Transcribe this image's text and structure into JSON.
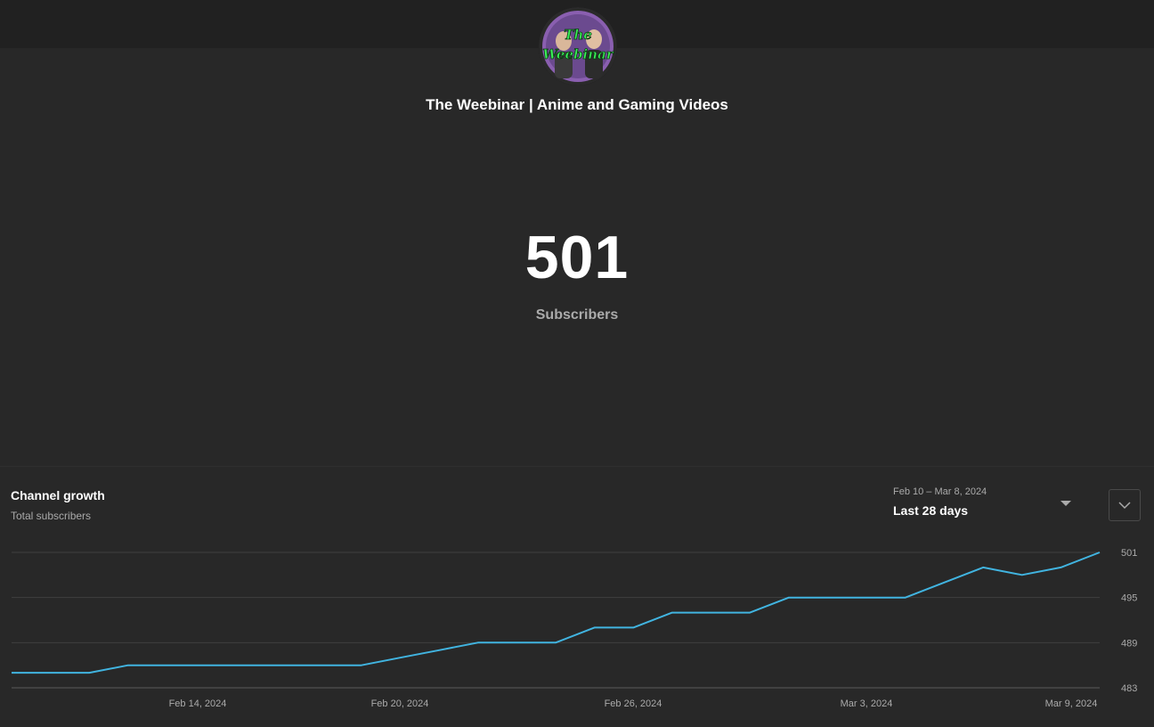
{
  "channel": {
    "name": "The Weebinar | Anime and Gaming Videos",
    "avatar_logo_text": "The Weebinar"
  },
  "stats": {
    "subscriber_count": "501",
    "subscriber_label": "Subscribers"
  },
  "growth": {
    "title": "Channel growth",
    "subtitle": "Total subscribers",
    "date_range": "Feb 10 – Mar 8, 2024",
    "range_label": "Last 28 days"
  },
  "icons": {
    "range_caret": "caret-down-icon",
    "expand": "chevron-down-icon"
  },
  "colors": {
    "background": "#282828",
    "topbar": "#212121",
    "line": "#41b4e0",
    "gridline": "#3f3f3f",
    "muted_text": "#aaaaaa"
  },
  "chart_data": {
    "type": "line",
    "title": "Channel growth",
    "subtitle": "Total subscribers",
    "xlabel": "",
    "ylabel": "",
    "x": [
      "Feb 10",
      "Feb 11",
      "Feb 12",
      "Feb 13",
      "Feb 14",
      "Feb 15",
      "Feb 16",
      "Feb 17",
      "Feb 18",
      "Feb 19",
      "Feb 20",
      "Feb 21",
      "Feb 22",
      "Feb 23",
      "Feb 24",
      "Feb 25",
      "Feb 26",
      "Feb 27",
      "Feb 28",
      "Feb 29",
      "Mar 1",
      "Mar 2",
      "Mar 3",
      "Mar 4",
      "Mar 5",
      "Mar 6",
      "Mar 7",
      "Mar 8",
      "Mar 9"
    ],
    "series": [
      {
        "values": [
          485,
          485,
          485,
          486,
          486,
          486,
          486,
          486,
          486,
          486,
          487,
          488,
          489,
          489,
          489,
          491,
          491,
          493,
          493,
          493,
          495,
          495,
          495,
          495,
          497,
          499,
          498,
          499,
          501
        ]
      }
    ],
    "ylim": [
      483,
      501
    ],
    "yticks": [
      "501",
      "495",
      "489",
      "483"
    ],
    "xticks": [
      "Feb 14, 2024",
      "Feb 20, 2024",
      "Feb 26, 2024",
      "Mar 3, 2024",
      "Mar 9, 2024"
    ],
    "grid": true,
    "y_axis_side": "right"
  }
}
